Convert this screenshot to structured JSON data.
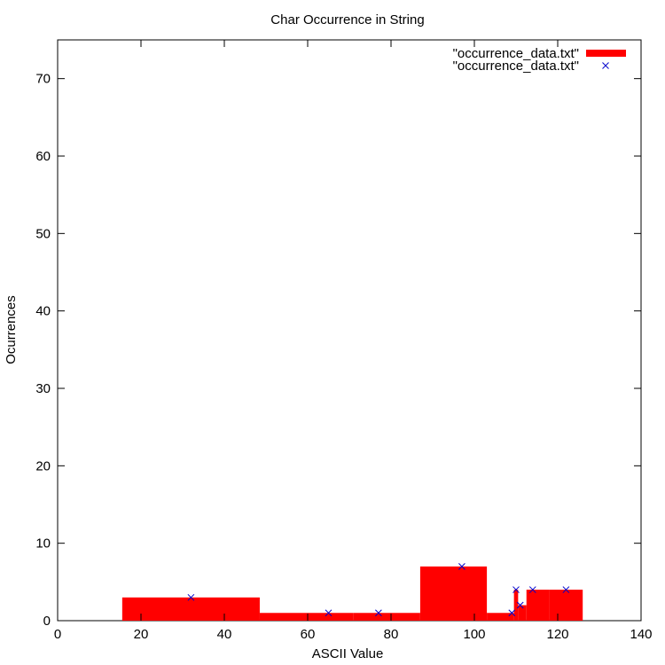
{
  "chart_data": {
    "type": "bar",
    "title": "Char Occurrence in String",
    "xlabel": "ASCII Value",
    "ylabel": "Ocurrences",
    "xlim": [
      0,
      140
    ],
    "ylim": [
      0,
      75
    ],
    "xticks": [
      0,
      20,
      40,
      60,
      80,
      100,
      120,
      140
    ],
    "yticks": [
      0,
      10,
      20,
      30,
      40,
      50,
      60,
      70
    ],
    "grid": false,
    "legend_position": "top-right",
    "series": [
      {
        "name": "\"occurrence_data.txt\"",
        "style": "boxes",
        "color": "#ff0000",
        "x": [
          32,
          65,
          77,
          97,
          109,
          110,
          111,
          114,
          122
        ],
        "values": [
          3,
          1,
          1,
          7,
          1,
          4,
          2,
          4,
          4
        ]
      },
      {
        "name": "\"occurrence_data.txt\"",
        "style": "points",
        "marker": "x",
        "color": "#0000cc",
        "x": [
          32,
          65,
          77,
          97,
          109,
          110,
          111,
          114,
          122
        ],
        "values": [
          3,
          1,
          1,
          7,
          1,
          4,
          2,
          4,
          4
        ]
      }
    ]
  }
}
